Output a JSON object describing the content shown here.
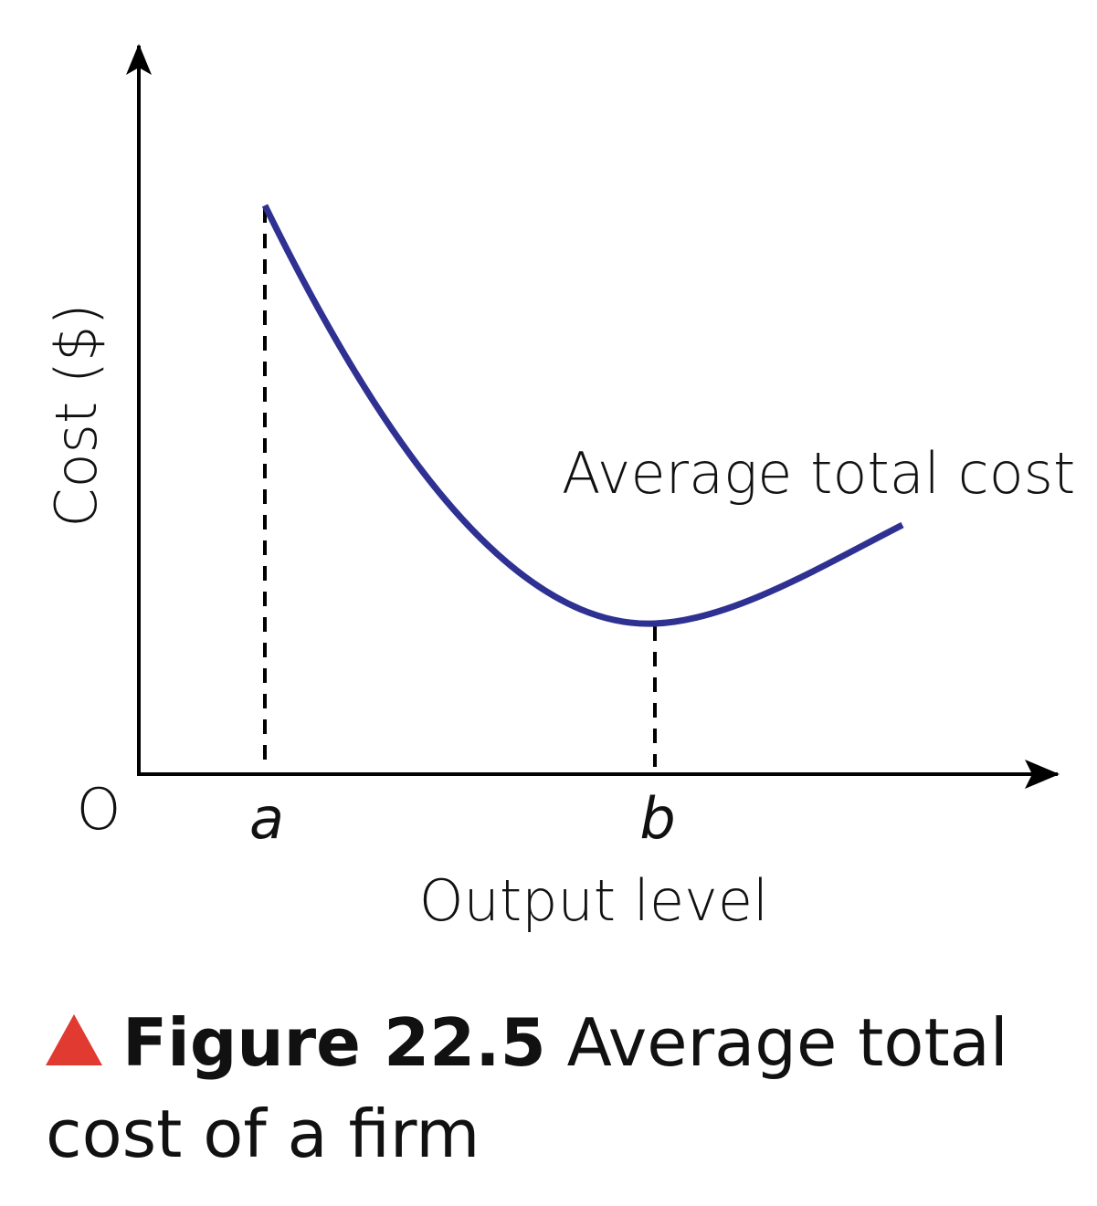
{
  "diagram": {
    "y_axis_label": "Cost ($)",
    "x_axis_label": "Output level",
    "origin_label": "O",
    "x_markers": [
      "a",
      "b"
    ],
    "curve_label": "Average total cost"
  },
  "caption": {
    "figure_number": "Figure 22.5",
    "text": "Average total cost of a firm"
  }
}
